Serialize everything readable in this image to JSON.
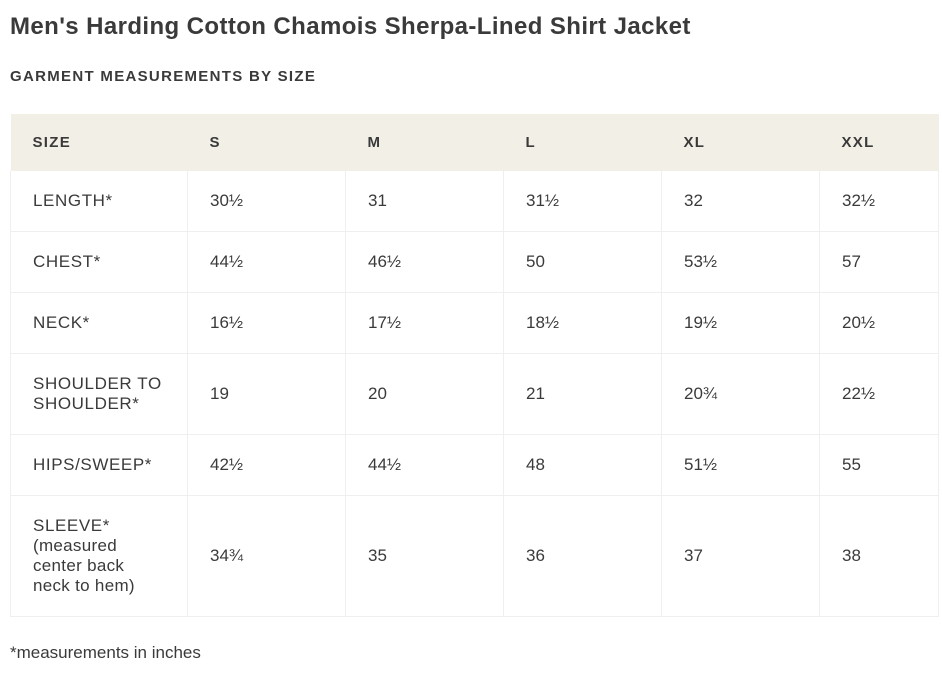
{
  "page": {
    "title": "Men's Harding Cotton Chamois Sherpa-Lined Shirt Jacket",
    "section_heading": "GARMENT MEASUREMENTS BY SIZE",
    "footnote": "*measurements in inches"
  },
  "colors": {
    "header_background": "#f2efe6",
    "text": "#3a3a3a",
    "grid_border": "#efefef"
  },
  "chart_data": {
    "type": "table",
    "title": "GARMENT MEASUREMENTS BY SIZE",
    "columns": [
      "SIZE",
      "S",
      "M",
      "L",
      "XL",
      "XXL"
    ],
    "rows": [
      {
        "label": "LENGTH*",
        "note": "",
        "values": [
          "30½",
          "31",
          "31½",
          "32",
          "32½"
        ]
      },
      {
        "label": "CHEST*",
        "note": "",
        "values": [
          "44½",
          "46½",
          "50",
          "53½",
          "57"
        ]
      },
      {
        "label": "NECK*",
        "note": "",
        "values": [
          "16½",
          "17½",
          "18½",
          "19½",
          "20½"
        ]
      },
      {
        "label": "SHOULDER TO SHOULDER*",
        "note": "",
        "values": [
          "19",
          "20",
          "21",
          "20¾",
          "22½"
        ]
      },
      {
        "label": "HIPS/SWEEP*",
        "note": "",
        "values": [
          "42½",
          "44½",
          "48",
          "51½",
          "55"
        ]
      },
      {
        "label": "SLEEVE*",
        "note": "(measured center back neck to hem)",
        "values": [
          "34¾",
          "35",
          "36",
          "37",
          "38"
        ]
      }
    ],
    "units": "inches"
  }
}
